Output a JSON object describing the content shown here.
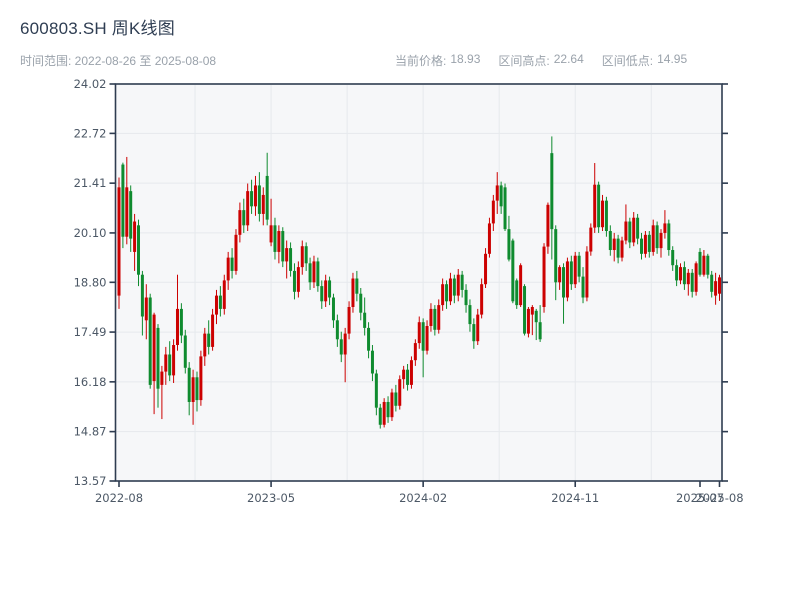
{
  "header": {
    "title": "600803.SH 周K线图",
    "time_range": "时间范围: 2022-08-26 至 2025-08-08",
    "stats": [
      {
        "label": "当前价格:",
        "value": "18.93"
      },
      {
        "label": "区间高点:",
        "value": "22.64"
      },
      {
        "label": "区间低点:",
        "value": "14.95"
      }
    ]
  },
  "chart_data": {
    "type": "candlestick",
    "title": "600803.SH 周K线图",
    "interval": "weekly",
    "time_range_start": "2022-08-26",
    "time_range_end": "2025-08-08",
    "current_price": 18.93,
    "range_high": 22.64,
    "range_low": 14.95,
    "ylim": [
      13.57,
      24.02
    ],
    "y_ticks": [
      24.02,
      22.72,
      21.41,
      20.1,
      18.8,
      17.49,
      16.18,
      14.87,
      13.57
    ],
    "x_ticks": [
      {
        "label": "2022-08",
        "i": 0
      },
      {
        "label": "2023-05",
        "i": 39
      },
      {
        "label": "2024-02",
        "i": 78
      },
      {
        "label": "2024-11",
        "i": 117
      },
      {
        "label": "2025-07",
        "i": 149
      },
      {
        "label": "2025-08",
        "i": 154
      }
    ],
    "grid_x_indices": [
      19.5,
      39,
      58.5,
      78,
      97.5,
      117,
      136.5
    ],
    "grid": true,
    "colors": {
      "up": "#cc0101",
      "down": "#0f8b2f",
      "axis": "#2e3c50",
      "tick_text": "#4c5866",
      "grid": "#e6e9ed",
      "plot_bg": "#f6f7f9"
    },
    "candles_format": [
      "open",
      "high",
      "low",
      "close"
    ],
    "candles": [
      [
        18.45,
        21.56,
        18.1,
        21.3
      ],
      [
        21.9,
        21.95,
        19.7,
        20.0
      ],
      [
        20.0,
        22.1,
        19.8,
        21.3
      ],
      [
        21.2,
        21.35,
        19.6,
        19.95
      ],
      [
        19.6,
        20.6,
        19.1,
        20.4
      ],
      [
        20.3,
        20.45,
        18.7,
        19.0
      ],
      [
        19.0,
        19.1,
        17.4,
        17.9
      ],
      [
        17.8,
        18.75,
        17.3,
        18.4
      ],
      [
        18.4,
        18.5,
        16.0,
        16.1
      ],
      [
        16.2,
        18.0,
        15.33,
        17.95
      ],
      [
        17.6,
        17.7,
        15.5,
        16.0
      ],
      [
        16.1,
        16.6,
        15.2,
        16.45
      ],
      [
        16.45,
        17.1,
        16.1,
        16.9
      ],
      [
        16.9,
        17.25,
        16.2,
        16.35
      ],
      [
        16.35,
        17.3,
        16.15,
        17.15
      ],
      [
        17.15,
        19.0,
        17.0,
        18.1
      ],
      [
        18.1,
        18.25,
        17.2,
        17.4
      ],
      [
        17.4,
        17.55,
        16.4,
        16.55
      ],
      [
        16.55,
        16.7,
        15.3,
        15.65
      ],
      [
        15.65,
        16.5,
        15.05,
        16.3
      ],
      [
        16.3,
        16.45,
        15.4,
        15.7
      ],
      [
        15.7,
        17.0,
        15.55,
        16.85
      ],
      [
        16.85,
        17.6,
        16.6,
        17.45
      ],
      [
        17.45,
        17.8,
        16.9,
        17.1
      ],
      [
        17.1,
        18.1,
        17.0,
        17.95
      ],
      [
        17.95,
        18.6,
        17.7,
        18.45
      ],
      [
        18.45,
        18.7,
        17.9,
        18.1
      ],
      [
        18.1,
        19.0,
        17.95,
        18.85
      ],
      [
        18.85,
        19.6,
        18.6,
        19.45
      ],
      [
        19.45,
        19.7,
        18.9,
        19.1
      ],
      [
        19.1,
        20.2,
        19.0,
        20.05
      ],
      [
        20.05,
        20.9,
        19.85,
        20.7
      ],
      [
        20.7,
        21.0,
        20.1,
        20.3
      ],
      [
        20.3,
        21.4,
        20.15,
        21.2
      ],
      [
        21.2,
        21.5,
        20.6,
        20.8
      ],
      [
        20.8,
        21.6,
        20.55,
        21.35
      ],
      [
        21.35,
        21.7,
        20.4,
        20.6
      ],
      [
        20.6,
        21.3,
        20.3,
        21.1
      ],
      [
        21.6,
        22.21,
        20.3,
        20.45
      ],
      [
        19.85,
        21.0,
        19.75,
        20.3
      ],
      [
        20.3,
        20.5,
        19.4,
        19.6
      ],
      [
        19.6,
        20.3,
        19.3,
        20.15
      ],
      [
        20.15,
        20.25,
        19.2,
        19.35
      ],
      [
        19.35,
        19.9,
        18.9,
        19.7
      ],
      [
        19.7,
        19.85,
        18.95,
        19.1
      ],
      [
        19.1,
        19.3,
        18.35,
        18.55
      ],
      [
        18.55,
        19.35,
        18.4,
        19.2
      ],
      [
        19.2,
        19.9,
        19.0,
        19.75
      ],
      [
        19.75,
        19.85,
        19.1,
        19.3
      ],
      [
        19.3,
        19.45,
        18.6,
        18.8
      ],
      [
        18.8,
        19.5,
        18.65,
        19.35
      ],
      [
        19.35,
        19.45,
        18.55,
        18.7
      ],
      [
        18.7,
        18.85,
        18.1,
        18.3
      ],
      [
        18.3,
        19.0,
        18.15,
        18.85
      ],
      [
        18.85,
        18.95,
        18.2,
        18.4
      ],
      [
        18.4,
        18.5,
        17.6,
        17.8
      ],
      [
        17.8,
        17.95,
        17.1,
        17.3
      ],
      [
        17.3,
        17.5,
        16.7,
        16.9
      ],
      [
        16.9,
        17.6,
        16.17,
        17.45
      ],
      [
        17.45,
        18.3,
        17.3,
        18.15
      ],
      [
        18.15,
        19.05,
        18.0,
        18.9
      ],
      [
        18.9,
        19.1,
        18.3,
        18.5
      ],
      [
        18.5,
        18.65,
        17.8,
        18.0
      ],
      [
        18.0,
        18.4,
        17.4,
        17.6
      ],
      [
        17.6,
        17.75,
        16.8,
        17.0
      ],
      [
        17.0,
        17.15,
        16.2,
        16.4
      ],
      [
        16.4,
        16.5,
        15.3,
        15.5
      ],
      [
        15.5,
        15.6,
        14.95,
        15.05
      ],
      [
        15.05,
        15.75,
        14.98,
        15.65
      ],
      [
        15.65,
        15.8,
        15.1,
        15.25
      ],
      [
        15.25,
        16.0,
        15.15,
        15.9
      ],
      [
        15.9,
        16.1,
        15.4,
        15.55
      ],
      [
        15.55,
        16.35,
        15.45,
        16.25
      ],
      [
        16.25,
        16.6,
        16.0,
        16.5
      ],
      [
        16.5,
        16.65,
        15.95,
        16.1
      ],
      [
        16.1,
        16.85,
        16.0,
        16.75
      ],
      [
        16.75,
        17.3,
        16.6,
        17.2
      ],
      [
        17.2,
        17.9,
        17.05,
        17.75
      ],
      [
        17.75,
        17.85,
        16.3,
        17.0
      ],
      [
        17.0,
        17.8,
        16.9,
        17.65
      ],
      [
        17.65,
        18.25,
        17.5,
        18.1
      ],
      [
        18.1,
        18.2,
        17.4,
        17.55
      ],
      [
        17.55,
        18.35,
        17.45,
        18.2
      ],
      [
        18.2,
        18.9,
        18.05,
        18.75
      ],
      [
        18.75,
        18.85,
        18.1,
        18.3
      ],
      [
        18.3,
        19.05,
        18.2,
        18.9
      ],
      [
        18.9,
        19.0,
        18.25,
        18.45
      ],
      [
        18.45,
        19.15,
        18.3,
        19.0
      ],
      [
        19.0,
        19.1,
        18.4,
        18.6
      ],
      [
        18.6,
        18.75,
        18.0,
        18.2
      ],
      [
        18.2,
        18.35,
        17.5,
        17.7
      ],
      [
        17.7,
        17.85,
        17.05,
        17.25
      ],
      [
        17.25,
        18.1,
        17.15,
        17.95
      ],
      [
        17.95,
        18.9,
        17.85,
        18.75
      ],
      [
        18.75,
        19.7,
        18.65,
        19.55
      ],
      [
        19.55,
        20.5,
        19.45,
        20.35
      ],
      [
        20.35,
        21.1,
        20.15,
        20.95
      ],
      [
        20.95,
        21.7,
        20.6,
        21.35
      ],
      [
        21.35,
        21.45,
        20.6,
        20.8
      ],
      [
        21.3,
        21.4,
        20.15,
        20.2
      ],
      [
        20.2,
        20.55,
        19.35,
        19.4
      ],
      [
        19.9,
        19.95,
        18.25,
        18.3
      ],
      [
        18.85,
        18.9,
        18.1,
        18.2
      ],
      [
        18.2,
        19.3,
        18.15,
        19.25
      ],
      [
        18.7,
        18.75,
        17.4,
        17.45
      ],
      [
        17.45,
        18.15,
        17.35,
        18.1
      ],
      [
        17.95,
        18.2,
        17.41,
        18.15
      ],
      [
        18.05,
        18.1,
        17.28,
        17.75
      ],
      [
        17.75,
        18.2,
        17.23,
        17.3
      ],
      [
        18.15,
        19.83,
        18.0,
        19.74
      ],
      [
        19.74,
        20.9,
        19.55,
        20.84
      ],
      [
        22.2,
        22.64,
        19.4,
        20.2
      ],
      [
        20.2,
        20.3,
        18.33,
        18.8
      ],
      [
        18.8,
        19.25,
        18.6,
        19.2
      ],
      [
        19.2,
        19.3,
        17.71,
        18.4
      ],
      [
        18.4,
        19.45,
        18.3,
        19.35
      ],
      [
        19.35,
        19.5,
        18.6,
        18.75
      ],
      [
        18.75,
        19.6,
        18.65,
        19.5
      ],
      [
        19.5,
        19.6,
        18.8,
        18.95
      ],
      [
        18.95,
        19.2,
        18.25,
        18.4
      ],
      [
        18.4,
        19.75,
        18.3,
        19.61
      ],
      [
        19.61,
        20.35,
        19.5,
        20.24
      ],
      [
        20.24,
        21.94,
        20.1,
        21.37
      ],
      [
        21.37,
        21.45,
        20.1,
        20.25
      ],
      [
        20.25,
        21.1,
        20.15,
        20.95
      ],
      [
        20.95,
        21.05,
        20.0,
        20.15
      ],
      [
        20.15,
        20.3,
        19.5,
        19.65
      ],
      [
        19.65,
        20.1,
        19.35,
        19.95
      ],
      [
        19.95,
        20.05,
        19.3,
        19.45
      ],
      [
        19.45,
        20.0,
        19.35,
        19.9
      ],
      [
        19.9,
        20.85,
        19.8,
        20.4
      ],
      [
        20.4,
        20.5,
        19.7,
        19.85
      ],
      [
        19.85,
        20.65,
        19.75,
        20.5
      ],
      [
        20.5,
        20.6,
        19.8,
        19.95
      ],
      [
        19.95,
        20.1,
        19.4,
        19.55
      ],
      [
        19.55,
        20.15,
        19.45,
        20.05
      ],
      [
        20.05,
        20.15,
        19.45,
        19.6
      ],
      [
        19.6,
        20.45,
        19.5,
        20.3
      ],
      [
        20.3,
        20.4,
        19.55,
        19.7
      ],
      [
        19.7,
        20.2,
        19.45,
        20.1
      ],
      [
        20.1,
        20.7,
        19.95,
        20.35
      ],
      [
        20.35,
        20.45,
        19.5,
        19.65
      ],
      [
        19.65,
        19.75,
        19.1,
        19.25
      ],
      [
        19.25,
        19.4,
        18.7,
        18.85
      ],
      [
        18.85,
        19.3,
        18.75,
        19.2
      ],
      [
        19.2,
        19.35,
        18.6,
        18.75
      ],
      [
        18.75,
        19.15,
        18.45,
        19.05
      ],
      [
        19.05,
        19.15,
        18.4,
        18.55
      ],
      [
        18.55,
        19.35,
        18.45,
        19.3
      ],
      [
        19.6,
        19.7,
        18.95,
        19.0
      ],
      [
        19.0,
        19.65,
        18.95,
        19.5
      ],
      [
        19.5,
        19.55,
        18.9,
        19.0
      ],
      [
        19.0,
        19.1,
        18.4,
        18.55
      ],
      [
        18.45,
        19.05,
        18.21,
        18.83
      ],
      [
        18.5,
        19.0,
        18.31,
        18.93
      ]
    ]
  }
}
